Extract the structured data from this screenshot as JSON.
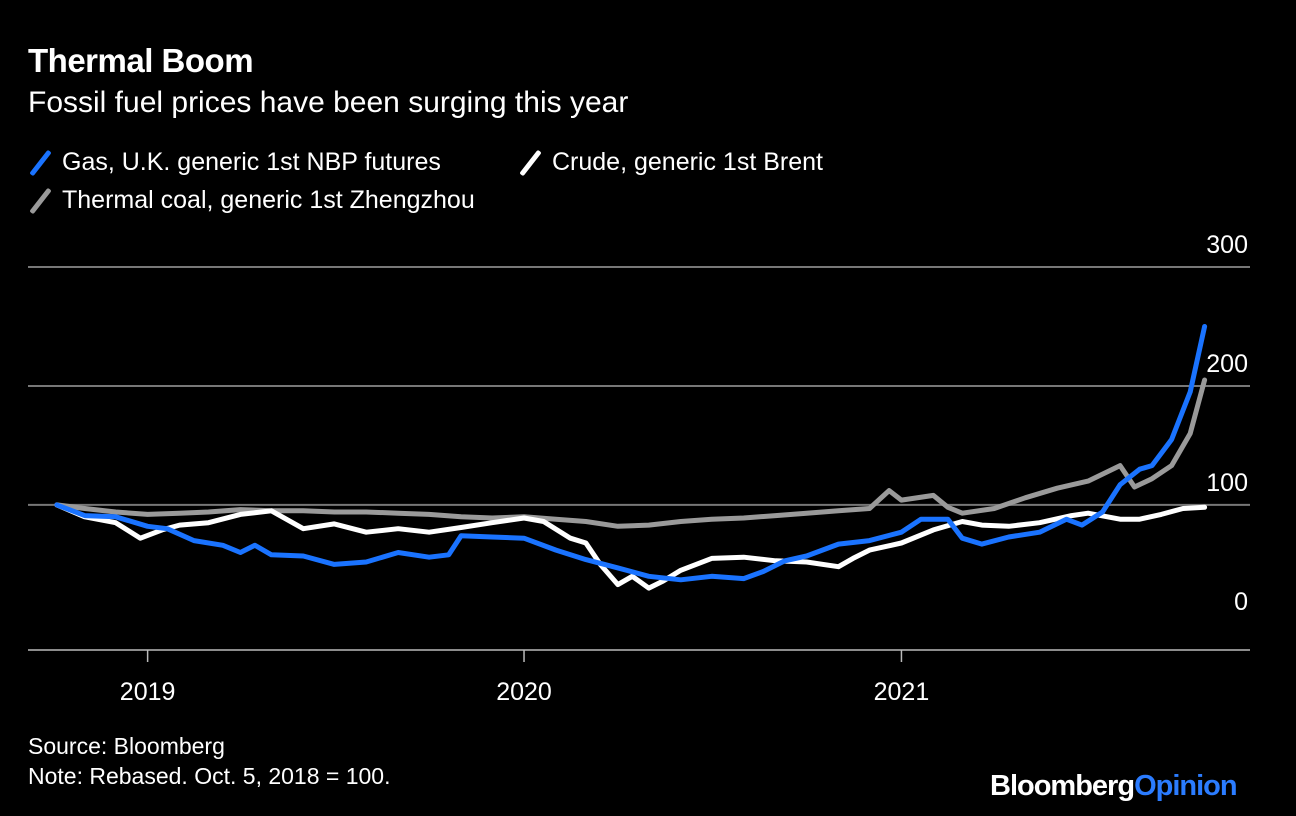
{
  "colors": {
    "gas": "#1a73ff",
    "crude": "#ffffff",
    "coal": "#9a9a9a",
    "grid": "#777777",
    "accent": "#2b7cff"
  },
  "logo": {
    "brand": "Bloomberg",
    "section": "Opinion"
  },
  "footer": {
    "source": "Source: Bloomberg",
    "note": "Note: Rebased. Oct. 5, 2018 = 100."
  },
  "chart_data": {
    "type": "line",
    "title": "Thermal Boom",
    "subtitle": "Fossil fuel prices have been surging this year",
    "legend": [
      "Gas, U.K. generic 1st NBP futures",
      "Crude, generic 1st Brent",
      "Thermal coal, generic 1st Zhengzhou"
    ],
    "xlabel": "",
    "ylabel": "",
    "xlim": [
      "2018-09-07",
      "2021-12-05"
    ],
    "ylim": [
      -22,
      300
    ],
    "yticks": [
      0,
      100,
      200,
      300
    ],
    "xticks": [
      "2019",
      "2020",
      "2021"
    ],
    "grid": true,
    "legend_position": "top-left",
    "series": [
      {
        "name": "Gas, U.K. generic 1st NBP futures",
        "color": "#1a73ff",
        "points": [
          [
            "2018-10-05",
            100
          ],
          [
            "2018-11-01",
            91
          ],
          [
            "2018-12-01",
            90
          ],
          [
            "2019-01-01",
            82
          ],
          [
            "2019-01-20",
            80
          ],
          [
            "2019-02-15",
            70
          ],
          [
            "2019-03-15",
            66
          ],
          [
            "2019-04-01",
            60
          ],
          [
            "2019-04-15",
            66
          ],
          [
            "2019-05-01",
            58
          ],
          [
            "2019-06-01",
            57
          ],
          [
            "2019-07-01",
            50
          ],
          [
            "2019-08-01",
            52
          ],
          [
            "2019-09-01",
            60
          ],
          [
            "2019-10-01",
            56
          ],
          [
            "2019-10-20",
            58
          ],
          [
            "2019-11-01",
            74
          ],
          [
            "2019-12-01",
            73
          ],
          [
            "2020-01-01",
            72
          ],
          [
            "2020-02-01",
            62
          ],
          [
            "2020-03-01",
            54
          ],
          [
            "2020-04-01",
            47
          ],
          [
            "2020-05-01",
            40
          ],
          [
            "2020-06-01",
            37
          ],
          [
            "2020-07-01",
            40
          ],
          [
            "2020-08-01",
            38
          ],
          [
            "2020-08-20",
            44
          ],
          [
            "2020-09-10",
            53
          ],
          [
            "2020-10-01",
            57
          ],
          [
            "2020-11-01",
            67
          ],
          [
            "2020-12-01",
            70
          ],
          [
            "2021-01-01",
            77
          ],
          [
            "2021-01-20",
            88
          ],
          [
            "2021-02-15",
            88
          ],
          [
            "2021-03-01",
            72
          ],
          [
            "2021-03-20",
            67
          ],
          [
            "2021-04-15",
            73
          ],
          [
            "2021-05-15",
            77
          ],
          [
            "2021-06-10",
            88
          ],
          [
            "2021-06-25",
            83
          ],
          [
            "2021-07-15",
            94
          ],
          [
            "2021-08-01",
            117
          ],
          [
            "2021-08-20",
            130
          ],
          [
            "2021-09-01",
            133
          ],
          [
            "2021-09-20",
            155
          ],
          [
            "2021-10-08",
            195
          ],
          [
            "2021-10-22",
            250
          ]
        ]
      },
      {
        "name": "Crude, generic 1st Brent",
        "color": "#ffffff",
        "points": [
          [
            "2018-10-05",
            100
          ],
          [
            "2018-11-01",
            90
          ],
          [
            "2018-12-01",
            85
          ],
          [
            "2018-12-25",
            72
          ],
          [
            "2019-01-15",
            79
          ],
          [
            "2019-02-01",
            83
          ],
          [
            "2019-03-01",
            85
          ],
          [
            "2019-04-01",
            92
          ],
          [
            "2019-05-01",
            95
          ],
          [
            "2019-06-01",
            80
          ],
          [
            "2019-07-01",
            84
          ],
          [
            "2019-08-01",
            77
          ],
          [
            "2019-09-01",
            80
          ],
          [
            "2019-10-01",
            77
          ],
          [
            "2019-11-01",
            81
          ],
          [
            "2019-12-01",
            85
          ],
          [
            "2020-01-01",
            89
          ],
          [
            "2020-01-20",
            86
          ],
          [
            "2020-02-15",
            72
          ],
          [
            "2020-03-01",
            68
          ],
          [
            "2020-03-15",
            50
          ],
          [
            "2020-04-01",
            33
          ],
          [
            "2020-04-15",
            40
          ],
          [
            "2020-05-01",
            30
          ],
          [
            "2020-05-15",
            36
          ],
          [
            "2020-06-01",
            45
          ],
          [
            "2020-07-01",
            55
          ],
          [
            "2020-08-01",
            56
          ],
          [
            "2020-09-01",
            53
          ],
          [
            "2020-10-01",
            52
          ],
          [
            "2020-11-01",
            48
          ],
          [
            "2020-11-15",
            55
          ],
          [
            "2020-12-01",
            62
          ],
          [
            "2021-01-01",
            68
          ],
          [
            "2021-02-01",
            79
          ],
          [
            "2021-03-01",
            86
          ],
          [
            "2021-03-20",
            83
          ],
          [
            "2021-04-15",
            82
          ],
          [
            "2021-05-15",
            85
          ],
          [
            "2021-06-15",
            91
          ],
          [
            "2021-07-01",
            93
          ],
          [
            "2021-08-01",
            88
          ],
          [
            "2021-08-20",
            88
          ],
          [
            "2021-09-10",
            92
          ],
          [
            "2021-10-01",
            97
          ],
          [
            "2021-10-22",
            98
          ]
        ]
      },
      {
        "name": "Thermal coal, generic 1st Zhengzhou",
        "color": "#9a9a9a",
        "points": [
          [
            "2018-10-05",
            100
          ],
          [
            "2018-11-01",
            97
          ],
          [
            "2018-12-01",
            94
          ],
          [
            "2019-01-01",
            92
          ],
          [
            "2019-02-01",
            93
          ],
          [
            "2019-03-01",
            94
          ],
          [
            "2019-04-01",
            96
          ],
          [
            "2019-05-01",
            95
          ],
          [
            "2019-06-01",
            95
          ],
          [
            "2019-07-01",
            94
          ],
          [
            "2019-08-01",
            94
          ],
          [
            "2019-09-01",
            93
          ],
          [
            "2019-10-01",
            92
          ],
          [
            "2019-11-01",
            90
          ],
          [
            "2019-12-01",
            89
          ],
          [
            "2020-01-01",
            90
          ],
          [
            "2020-02-01",
            88
          ],
          [
            "2020-03-01",
            86
          ],
          [
            "2020-04-01",
            82
          ],
          [
            "2020-05-01",
            83
          ],
          [
            "2020-06-01",
            86
          ],
          [
            "2020-07-01",
            88
          ],
          [
            "2020-08-01",
            89
          ],
          [
            "2020-09-01",
            91
          ],
          [
            "2020-10-01",
            93
          ],
          [
            "2020-11-01",
            95
          ],
          [
            "2020-12-01",
            97
          ],
          [
            "2020-12-20",
            112
          ],
          [
            "2021-01-01",
            104
          ],
          [
            "2021-02-01",
            108
          ],
          [
            "2021-02-15",
            98
          ],
          [
            "2021-03-01",
            93
          ],
          [
            "2021-04-01",
            97
          ],
          [
            "2021-05-01",
            106
          ],
          [
            "2021-06-01",
            114
          ],
          [
            "2021-07-01",
            120
          ],
          [
            "2021-08-01",
            133
          ],
          [
            "2021-08-15",
            115
          ],
          [
            "2021-09-01",
            122
          ],
          [
            "2021-09-20",
            133
          ],
          [
            "2021-10-08",
            160
          ],
          [
            "2021-10-22",
            205
          ]
        ]
      }
    ]
  }
}
